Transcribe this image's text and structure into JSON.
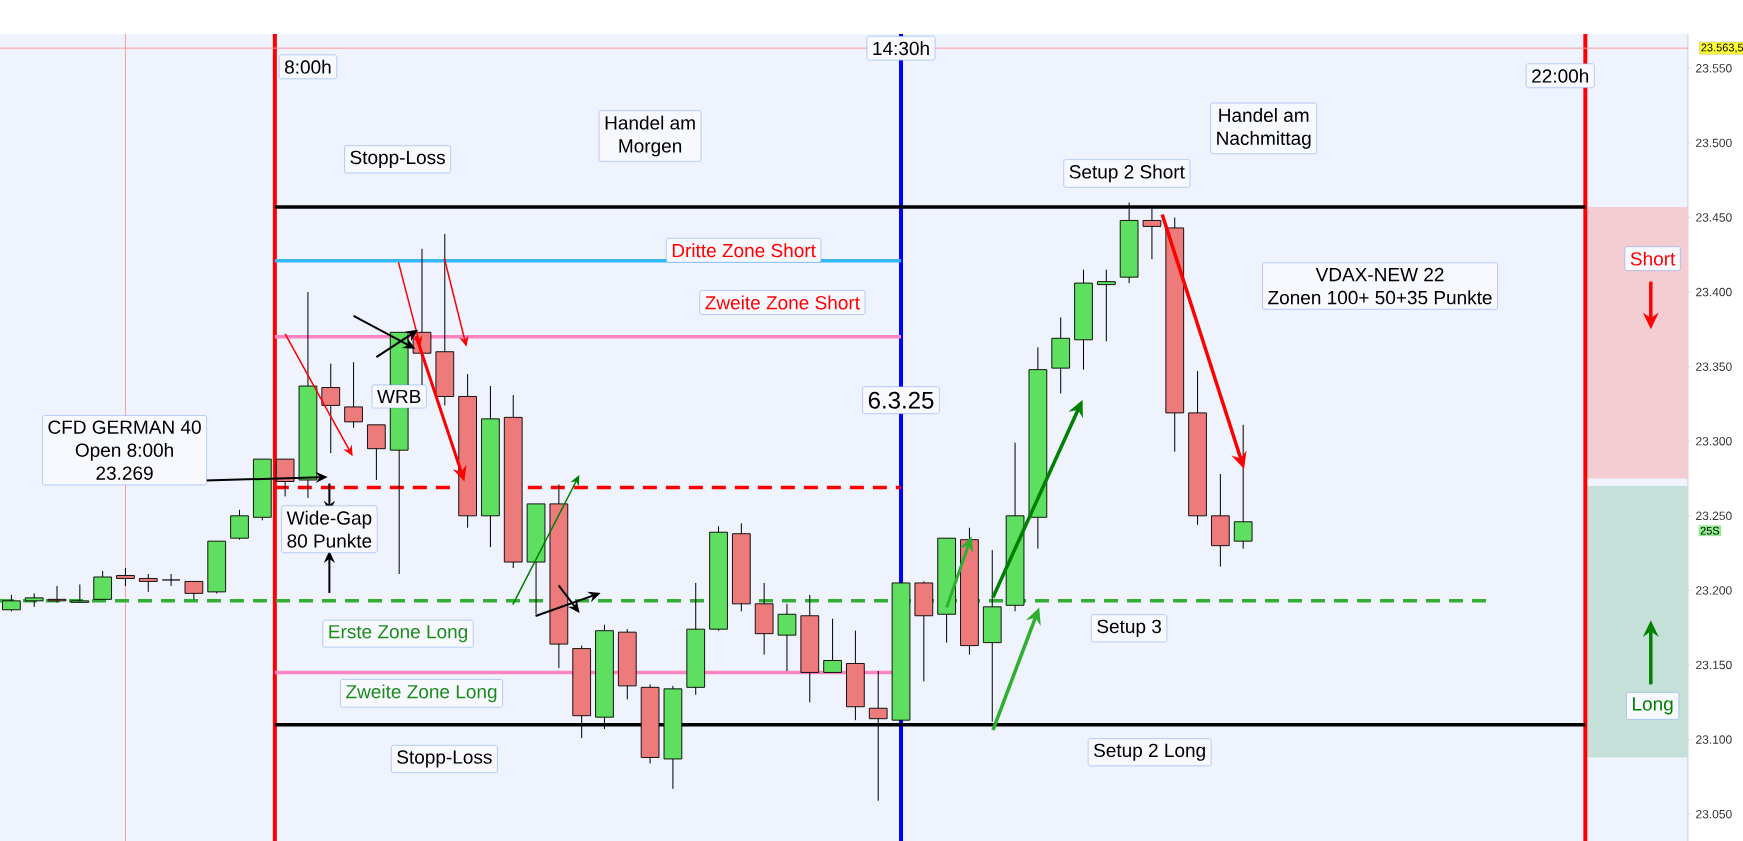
{
  "chart_data": {
    "type": "candlestick",
    "categories": [
      null,
      null,
      null,
      null,
      null,
      null,
      null,
      null,
      null,
      null,
      null,
      null,
      null,
      null,
      null,
      null,
      null,
      null,
      null,
      null,
      null,
      null,
      null,
      null,
      null,
      null,
      null,
      null,
      null,
      null,
      null,
      null,
      null,
      null,
      null,
      null,
      null,
      null,
      null,
      null,
      null,
      null,
      null,
      null,
      null,
      null,
      null,
      null,
      null,
      null,
      null,
      null,
      null,
      null,
      null,
      null,
      null,
      null,
      null,
      null,
      null,
      null,
      null,
      null,
      null,
      null,
      null,
      null,
      null,
      null,
      null,
      null,
      null,
      null
    ],
    "ohlc": [
      [
        23187,
        23197,
        23186,
        23193
      ],
      [
        23193,
        23198,
        23189,
        23195
      ],
      [
        23194,
        23203,
        23192,
        23193
      ],
      [
        23192,
        23204,
        23192,
        23193
      ],
      [
        23194,
        23213,
        23194,
        23209
      ],
      [
        23210,
        23215,
        23203,
        23208
      ],
      [
        23208,
        23211,
        23199,
        23206
      ],
      [
        23207,
        23211,
        23203,
        23207
      ],
      [
        23206,
        23206,
        23194,
        23198
      ],
      [
        23199,
        23233,
        23198,
        23233
      ],
      [
        23235,
        23254,
        23234,
        23250
      ],
      [
        23249,
        23288,
        23247,
        23288
      ],
      [
        23288,
        23288,
        23263,
        23273
      ],
      [
        23274,
        23400,
        23262,
        23337
      ],
      [
        23336,
        23352,
        23292,
        23324
      ],
      [
        23323,
        23353,
        23309,
        23313
      ],
      [
        23311,
        23311,
        23274,
        23295
      ],
      [
        23294,
        23373,
        23211,
        23373
      ],
      [
        23373,
        23429,
        23337,
        23359
      ],
      [
        23360,
        23439,
        23324,
        23330
      ],
      [
        23330,
        23345,
        23242,
        23250
      ],
      [
        23250,
        23337,
        23229,
        23315
      ],
      [
        23316,
        23331,
        23215,
        23219
      ],
      [
        23219,
        23258,
        23184,
        23258
      ],
      [
        23258,
        23271,
        23148,
        23164
      ],
      [
        23161,
        23163,
        23101,
        23116
      ],
      [
        23115,
        23177,
        23107,
        23173
      ],
      [
        23172,
        23174,
        23127,
        23136
      ],
      [
        23135,
        23137,
        23084,
        23088
      ],
      [
        23087,
        23136,
        23067,
        23134
      ],
      [
        23135,
        23205,
        23130,
        23174
      ],
      [
        23174,
        23243,
        23173,
        23239
      ],
      [
        23238,
        23245,
        23186,
        23191
      ],
      [
        23191,
        23205,
        23157,
        23171
      ],
      [
        23170,
        23191,
        23146,
        23184
      ],
      [
        23183,
        23197,
        23125,
        23145
      ],
      [
        23145,
        23181,
        23145,
        23153
      ],
      [
        23151,
        23173,
        23113,
        23122
      ],
      [
        23121,
        23146,
        23059,
        23114
      ],
      [
        23113,
        23205,
        23113,
        23205
      ],
      [
        23205,
        23206,
        23139,
        23183
      ],
      [
        23184,
        23235,
        23165,
        23235
      ],
      [
        23234,
        23242,
        23157,
        23163
      ],
      [
        23165,
        23227,
        23112,
        23189
      ],
      [
        23190,
        23299,
        23186,
        23250
      ],
      [
        23249,
        23363,
        23228,
        23348
      ],
      [
        23349,
        23383,
        23332,
        23369
      ],
      [
        23368,
        23415,
        23348,
        23406
      ],
      [
        23405,
        23415,
        23367,
        23407
      ],
      [
        23410,
        23460,
        23406,
        23448
      ],
      [
        23448,
        23456,
        23422,
        23444
      ],
      [
        23443,
        23450,
        23293,
        23319
      ],
      [
        23319,
        23347,
        23244,
        23250
      ],
      [
        23250,
        23278,
        23216,
        23230
      ],
      [
        23233,
        23311,
        23228,
        23246
      ],
      null,
      null,
      null,
      null,
      null,
      null,
      null,
      null,
      null,
      null,
      null,
      null,
      null,
      null,
      null,
      null,
      null,
      null,
      null
    ],
    "ylim": [
      23032,
      23573
    ],
    "yticks": [
      {
        "value": 23050,
        "label": "23.050"
      },
      {
        "value": 23100,
        "label": "23.100"
      },
      {
        "value": 23150,
        "label": "23.150"
      },
      {
        "value": 23200,
        "label": "23.200"
      },
      {
        "value": 23250,
        "label": "23.250"
      },
      {
        "value": 23300,
        "label": "23.300"
      },
      {
        "value": 23350,
        "label": "23.350"
      },
      {
        "value": 23400,
        "label": "23.400"
      },
      {
        "value": 23450,
        "label": "23.450"
      },
      {
        "value": 23500,
        "label": "23.500"
      },
      {
        "value": 23550,
        "label": "23.550"
      }
    ],
    "tick_labels": "y",
    "ref_lines": [
      {
        "axis": "y",
        "value": 23563.5,
        "label": "23.563,5",
        "color": "#ff9a9a"
      },
      {
        "axis": "y",
        "value": 23457,
        "color": "#000000"
      },
      {
        "axis": "y",
        "value": 23110,
        "color": "#000000"
      },
      {
        "axis": "y",
        "value": 23421,
        "color": "#33b8f2"
      },
      {
        "axis": "y",
        "value": 23370,
        "color": "#ff85c2"
      },
      {
        "axis": "y",
        "value": 23269,
        "color": "#ff0000",
        "line_style": "dashed"
      },
      {
        "axis": "y",
        "value": 23193,
        "color": "#33b033",
        "line_style": "dashed"
      },
      {
        "axis": "y",
        "value": 23145,
        "color": "#ff85c2"
      }
    ],
    "bands": [
      {
        "axis": "y",
        "from": 23275,
        "to": 23457,
        "label": "Short",
        "color": "#f4cdd3"
      },
      {
        "axis": "y",
        "from": 23088,
        "to": 23270,
        "label": "Long",
        "color": "#c5e0d8"
      }
    ],
    "annotations": [
      "Stopp-Loss",
      "Handel am",
      "Morgen",
      "Handel am",
      "Nachmittag",
      "Setup 2 Short",
      "Dritte Zone Short",
      "Zweite Zone Short",
      "VDAX-NEW 22",
      "Zonen 100+ 50+35 Punkte",
      "WRB",
      "6.3.25",
      "CFD GERMAN 40",
      "Open 8:00h",
      "23.269",
      "Wide-Gap",
      "80 Punkte",
      "Erste Zone Long",
      "Zweite  Zone Long",
      "Stopp-Loss",
      "Setup 3",
      "Setup 2 Long",
      "25S",
      "8:00h",
      "14:30h",
      "22:00h"
    ]
  }
}
